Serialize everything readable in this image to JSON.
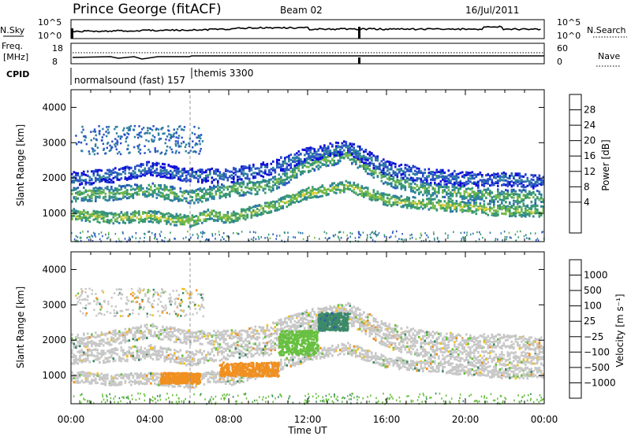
{
  "header": {
    "station": "Prince George (fitACF)",
    "beam": "Beam 02",
    "date": "16/Jul/2011"
  },
  "top_panels": {
    "nsky_label": "N.Sky",
    "nsky_ticks": [
      "10^5",
      "10^0"
    ],
    "nsearch_label": "N.Search",
    "nsearch_ticks": [
      "10^5",
      "10^0"
    ],
    "freq_label": "Freq.",
    "freq_unit": "[MHz]",
    "freq_ticks": [
      "18",
      "8"
    ],
    "nave_label": "Nave",
    "nave_ticks": [
      "60",
      "0"
    ],
    "cpid_label": "CPID",
    "cpid_segments": [
      {
        "name": "normalsound (fast) 157",
        "start_hour": 0
      },
      {
        "name": "themis 3300",
        "start_hour": 6
      }
    ]
  },
  "colorbars": {
    "power": {
      "label": "Power [dB]",
      "ticks": [
        "4",
        "8",
        "12",
        "16",
        "20",
        "24",
        "28"
      ],
      "colors": [
        "#1010d8",
        "#2a52c8",
        "#2f7fa0",
        "#3a9a70",
        "#74b84a",
        "#e0d040",
        "#f0a030",
        "#e85a20",
        "#d01010"
      ]
    },
    "velocity": {
      "label": "Velocity [m s⁻¹]",
      "ticks": [
        "1000",
        "500",
        "100",
        "25",
        "−25",
        "−100",
        "−500",
        "−1000"
      ],
      "colors": [
        "#1d3ad0",
        "#2e5aa8",
        "#3c8a68",
        "#68c040",
        "#c8c8c8",
        "#f0c020",
        "#f09020",
        "#e86010",
        "#e02010"
      ]
    }
  },
  "chart_data": [
    {
      "type": "heatmap",
      "panel": "power",
      "ylabel": "Slant Range [km]",
      "ylim": [
        200,
        4500
      ],
      "yticks": [
        1000,
        2000,
        3000,
        4000
      ],
      "xlim_hours": [
        0,
        24
      ],
      "xticks": [
        "00:00",
        "04:00",
        "08:00",
        "12:00",
        "16:00",
        "20:00",
        "00:00"
      ],
      "bands": [
        {
          "range_km": [
            [
              0,
              1550
            ],
            [
              2,
              1600
            ],
            [
              4,
              1700
            ],
            [
              6,
              1500
            ],
            [
              8,
              1700
            ],
            [
              10,
              1800
            ],
            [
              12,
              2400
            ],
            [
              14,
              2700
            ],
            [
              16,
              2000
            ],
            [
              18,
              1700
            ],
            [
              20,
              1600
            ],
            [
              22,
              1500
            ],
            [
              24,
              1500
            ]
          ],
          "width_km": 250,
          "power_db": 14
        },
        {
          "range_km": [
            [
              0,
              1000
            ],
            [
              2,
              900
            ],
            [
              4,
              950
            ],
            [
              6,
              800
            ],
            [
              7,
              1000
            ],
            [
              8,
              900
            ],
            [
              10,
              1200
            ],
            [
              12,
              1600
            ],
            [
              14,
              1800
            ],
            [
              16,
              1400
            ],
            [
              18,
              1300
            ],
            [
              20,
              1200
            ],
            [
              22,
              1100
            ],
            [
              24,
              1100
            ]
          ],
          "width_km": 200,
          "power_db": 16
        },
        {
          "range_km": [
            [
              0,
              2000
            ],
            [
              2,
              2100
            ],
            [
              4,
              2300
            ],
            [
              6,
              2100
            ],
            [
              8,
              2100
            ],
            [
              10,
              2300
            ],
            [
              12,
              2700
            ],
            [
              14,
              2900
            ],
            [
              16,
              2300
            ],
            [
              18,
              2100
            ],
            [
              20,
              2000
            ],
            [
              22,
              2000
            ],
            [
              24,
              1900
            ]
          ],
          "width_km": 250,
          "power_db": 8
        }
      ]
    },
    {
      "type": "heatmap",
      "panel": "velocity",
      "ylabel": "Slant Range [km]",
      "xlabel": "Time UT",
      "ylim": [
        200,
        4500
      ],
      "yticks": [
        1000,
        2000,
        3000,
        4000
      ],
      "xlim_hours": [
        0,
        24
      ],
      "xticks": [
        "00:00",
        "04:00",
        "08:00",
        "12:00",
        "16:00",
        "20:00",
        "00:00"
      ],
      "bands": [
        {
          "range_km": [
            [
              0,
              1550
            ],
            [
              2,
              1600
            ],
            [
              4,
              1700
            ],
            [
              6,
              1500
            ],
            [
              8,
              1700
            ],
            [
              10,
              1800
            ],
            [
              12,
              2400
            ],
            [
              14,
              2700
            ],
            [
              16,
              2000
            ],
            [
              18,
              1700
            ],
            [
              20,
              1600
            ],
            [
              22,
              1500
            ],
            [
              24,
              1500
            ]
          ],
          "width_km": 250,
          "velocity": 0
        },
        {
          "range_km": [
            [
              0,
              1000
            ],
            [
              2,
              900
            ],
            [
              4,
              950
            ],
            [
              6,
              800
            ],
            [
              7,
              1000
            ],
            [
              8,
              900
            ],
            [
              10,
              1200
            ],
            [
              12,
              1600
            ],
            [
              14,
              1800
            ],
            [
              16,
              1400
            ],
            [
              18,
              1300
            ],
            [
              20,
              1200
            ],
            [
              22,
              1100
            ],
            [
              24,
              1100
            ]
          ],
          "width_km": 200,
          "velocity": 0
        },
        {
          "range_km": [
            [
              0,
              2000
            ],
            [
              2,
              2100
            ],
            [
              4,
              2300
            ],
            [
              6,
              2100
            ],
            [
              8,
              2100
            ],
            [
              10,
              2300
            ],
            [
              12,
              2700
            ],
            [
              14,
              2900
            ],
            [
              16,
              2300
            ],
            [
              18,
              2100
            ],
            [
              20,
              2000
            ],
            [
              22,
              2000
            ],
            [
              24,
              1900
            ]
          ],
          "width_km": 250,
          "velocity": 0
        }
      ],
      "highlights": [
        {
          "hours": [
            4.5,
            6.5
          ],
          "range_km": [
            800,
            1100
          ],
          "velocity": -300
        },
        {
          "hours": [
            7.5,
            10.5
          ],
          "range_km": [
            1000,
            1400
          ],
          "velocity": -150
        },
        {
          "hours": [
            10.5,
            12.5
          ],
          "range_km": [
            1600,
            2300
          ],
          "velocity": 60
        },
        {
          "hours": [
            12.5,
            14.0
          ],
          "range_km": [
            2300,
            2800
          ],
          "velocity": 400
        }
      ]
    }
  ]
}
